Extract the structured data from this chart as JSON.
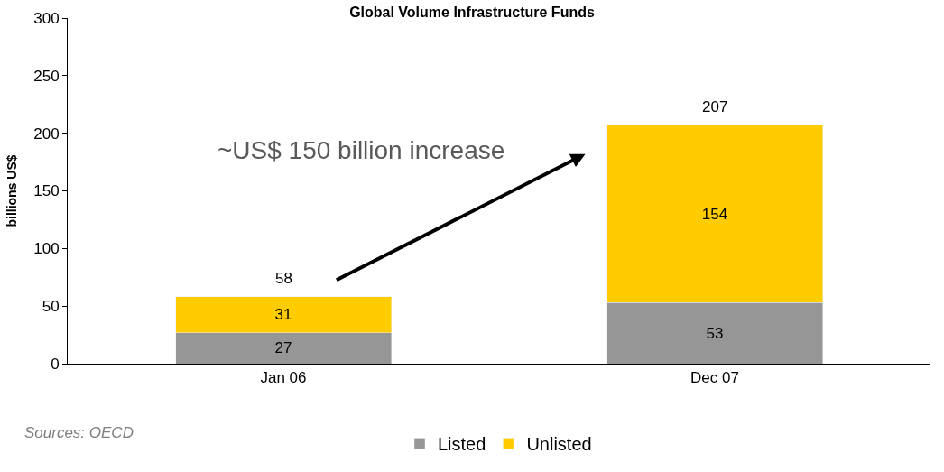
{
  "chart_data": {
    "type": "bar",
    "title": "Global Volume Infrastructure Funds",
    "ylabel": "billions US$",
    "categories": [
      "Jan 06",
      "Dec 07"
    ],
    "stacked": true,
    "series": [
      {
        "name": "Listed",
        "color": "#969696",
        "values": [
          27,
          53
        ]
      },
      {
        "name": "Unlisted",
        "color": "#ffcc00",
        "values": [
          31,
          154
        ]
      }
    ],
    "totals": [
      "58",
      "207"
    ],
    "data_labels": true,
    "ylim": [
      0,
      300
    ],
    "yticks": [
      0,
      50,
      100,
      150,
      200,
      250,
      300
    ],
    "legend": "bottom",
    "annotations": [
      "~US$ 150 billion increase",
      "Sources: OECD"
    ]
  }
}
